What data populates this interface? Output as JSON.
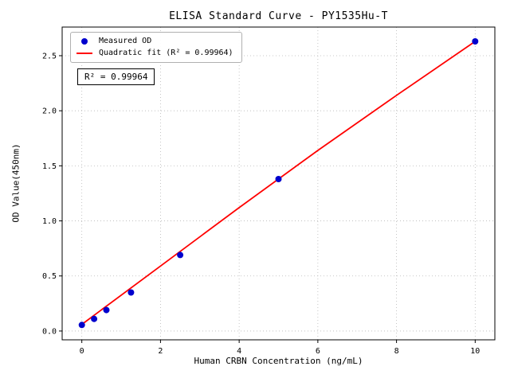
{
  "chart_data": {
    "type": "scatter",
    "title": "ELISA Standard Curve - PY1535Hu-T",
    "xlabel": "Human CRBN Concentration (ng/mL)",
    "ylabel": "OD Value(450nm)",
    "xlim": [
      -0.5,
      10.5
    ],
    "ylim": [
      -0.08,
      2.76
    ],
    "xticks": [
      0,
      2,
      4,
      6,
      8,
      10
    ],
    "xtick_labels": [
      "0",
      "2",
      "4",
      "6",
      "8",
      "10"
    ],
    "yticks": [
      0.0,
      0.5,
      1.0,
      1.5,
      2.0,
      2.5
    ],
    "ytick_labels": [
      "0.0",
      "0.5",
      "1.0",
      "1.5",
      "2.0",
      "2.5"
    ],
    "grid": true,
    "grid_style": "dotted",
    "grid_color": "#b8b8b8",
    "legend_position": "upper-left",
    "series": [
      {
        "name": "Measured OD",
        "type": "scatter",
        "color": "#0000cd",
        "x": [
          0,
          0.313,
          0.625,
          1.25,
          2.5,
          5,
          10
        ],
        "y": [
          0.055,
          0.11,
          0.19,
          0.35,
          0.69,
          1.38,
          2.63
        ]
      },
      {
        "name": "Quadratic fit (R² = 0.99964)",
        "type": "line",
        "color": "#ff0000",
        "x": [
          0,
          2,
          4,
          6,
          8,
          10
        ],
        "y": [
          0.06,
          0.59,
          1.12,
          1.64,
          2.14,
          2.63
        ]
      }
    ],
    "annotation": "R² = 0.99964"
  }
}
